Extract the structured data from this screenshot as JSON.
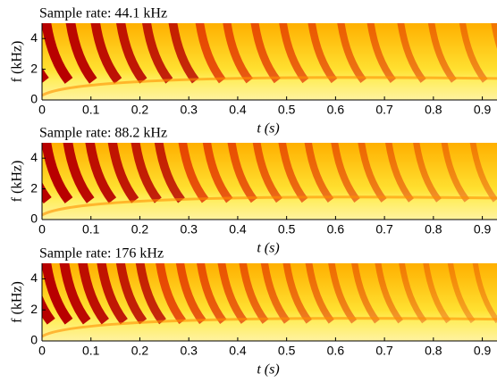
{
  "chart_data": [
    {
      "type": "spectrogram",
      "title": "Sample rate: 44.1 kHz",
      "xlabel": "t (s)",
      "ylabel": "f (kHz)",
      "xlim": [
        0,
        0.93
      ],
      "ylim": [
        0,
        5
      ],
      "xticks": [
        0,
        0.1,
        0.2,
        0.3,
        0.4,
        0.5,
        0.6,
        0.7,
        0.8,
        0.9
      ],
      "yticks": [
        0,
        2,
        4
      ]
    },
    {
      "type": "spectrogram",
      "title": "Sample rate: 88.2 kHz",
      "xlabel": "t (s)",
      "ylabel": "f (kHz)",
      "xlim": [
        0,
        0.93
      ],
      "ylim": [
        0,
        5
      ],
      "xticks": [
        0,
        0.1,
        0.2,
        0.3,
        0.4,
        0.5,
        0.6,
        0.7,
        0.8,
        0.9
      ],
      "yticks": [
        0,
        2,
        4
      ]
    },
    {
      "type": "spectrogram",
      "title": "Sample rate: 176 kHz",
      "xlabel": "t (s)",
      "ylabel": "f (kHz)",
      "xlim": [
        0,
        0.93
      ],
      "ylim": [
        0,
        5
      ],
      "xticks": [
        0,
        0.1,
        0.2,
        0.3,
        0.4,
        0.5,
        0.6,
        0.7,
        0.8,
        0.9
      ],
      "yticks": [
        0,
        2,
        4
      ]
    }
  ]
}
